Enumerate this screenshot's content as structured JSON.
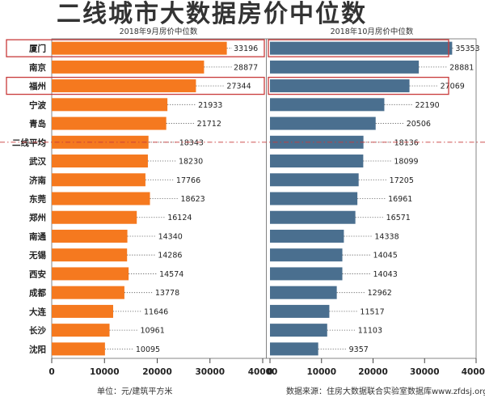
{
  "title": "二线城市大数据房价中位数",
  "footer": {
    "unit": "单位：元/建筑平方米",
    "source": "数据来源：住房大数据联合实验室数据库www.zfdsj.org"
  },
  "chart_data": [
    {
      "type": "bar",
      "orientation": "horizontal",
      "title": "2018年9月房价中位数",
      "color": "#F5791F",
      "xlim": [
        0,
        40000
      ],
      "xticks": [
        0,
        10000,
        20000,
        30000,
        40000
      ],
      "categories": [
        "厦门",
        "南京",
        "福州",
        "宁波",
        "青岛",
        "二线平均",
        "武汉",
        "济南",
        "东莞",
        "郑州",
        "南通",
        "无锡",
        "西安",
        "成都",
        "大连",
        "长沙",
        "沈阳"
      ],
      "values": [
        33196,
        28877,
        27344,
        21933,
        21712,
        18343,
        18230,
        17766,
        18623,
        16124,
        14340,
        14286,
        14574,
        13778,
        11646,
        10961,
        10095
      ],
      "highlighted": [
        "厦门",
        "福州"
      ],
      "reference_line": "二线平均"
    },
    {
      "type": "bar",
      "orientation": "horizontal",
      "title": "2018年10月房价中位数",
      "color": "#4A6F8F",
      "xlim": [
        0,
        40000
      ],
      "xticks": [
        0,
        10000,
        20000,
        30000,
        40000
      ],
      "categories": [
        "厦门",
        "南京",
        "福州",
        "宁波",
        "青岛",
        "二线平均",
        "武汉",
        "济南",
        "东莞",
        "郑州",
        "南通",
        "无锡",
        "西安",
        "成都",
        "大连",
        "长沙",
        "沈阳"
      ],
      "values": [
        35353,
        28881,
        27069,
        22190,
        20506,
        18136,
        18099,
        17205,
        16961,
        16571,
        14338,
        14045,
        14043,
        12962,
        11517,
        11103,
        9357
      ],
      "highlighted": [
        "厦门",
        "福州"
      ],
      "reference_line": "二线平均"
    }
  ]
}
